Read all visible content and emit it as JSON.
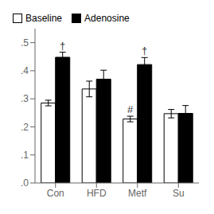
{
  "chart_data": {
    "type": "bar",
    "categories": [
      "Con",
      "HFD",
      "Metf",
      "Su"
    ],
    "series": [
      {
        "name": "Baseline",
        "color": "#ffffff",
        "values": [
          0.285,
          0.335,
          0.228,
          0.247
        ],
        "errors": [
          0.01,
          0.028,
          0.01,
          0.015
        ]
      },
      {
        "name": "Adenosine",
        "color": "#000000",
        "values": [
          0.448,
          0.37,
          0.422,
          0.248
        ],
        "errors": [
          0.018,
          0.032,
          0.025,
          0.028
        ]
      }
    ],
    "ylim": [
      0.0,
      0.55
    ],
    "yticks": [
      {
        "value": 0.0,
        "label": ".0"
      },
      {
        "value": 0.1,
        "label": ".1"
      },
      {
        "value": 0.2,
        "label": ".2"
      },
      {
        "value": 0.3,
        "label": ".3"
      },
      {
        "value": 0.4,
        "label": ".4"
      },
      {
        "value": 0.5,
        "label": ".5"
      }
    ],
    "legend": "upper left",
    "grid": false,
    "annotations": [
      {
        "text": "†",
        "category": "Con",
        "series": "Adenosine"
      },
      {
        "text": "†",
        "category": "Metf",
        "series": "Adenosine"
      },
      {
        "text": "#",
        "category": "Metf",
        "series": "Baseline"
      }
    ]
  }
}
